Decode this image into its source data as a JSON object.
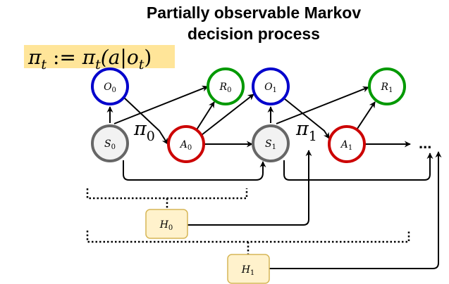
{
  "title": {
    "line1": "Partially observable Markov",
    "line2": "decision process"
  },
  "policy_formula": {
    "pi": "π",
    "subscript": "t",
    "assign": " := ",
    "args": "(a|o",
    "args_sub": "t",
    "close": ")"
  },
  "nodes": {
    "O0": {
      "letter": "O",
      "sub": "0"
    },
    "R0": {
      "letter": "R",
      "sub": "0"
    },
    "O1": {
      "letter": "O",
      "sub": "1"
    },
    "R1": {
      "letter": "R",
      "sub": "1"
    },
    "S0": {
      "letter": "S",
      "sub": "0"
    },
    "A0": {
      "letter": "A",
      "sub": "0"
    },
    "S1": {
      "letter": "S",
      "sub": "1"
    },
    "A1": {
      "letter": "A",
      "sub": "1"
    },
    "H0": {
      "letter": "H",
      "sub": "0"
    },
    "H1": {
      "letter": "H",
      "sub": "1"
    }
  },
  "policy_labels": {
    "pi0": {
      "letter": "π",
      "sub": "0"
    },
    "pi1": {
      "letter": "π",
      "sub": "1"
    }
  },
  "ellipsis": "...",
  "colors": {
    "observation": "#0000cc",
    "reward": "#009900",
    "action": "#cc0000",
    "state": "#666666",
    "history_fill": "#fff2cc",
    "history_stroke": "#d6b656",
    "formula_highlight": "#ffe599"
  }
}
